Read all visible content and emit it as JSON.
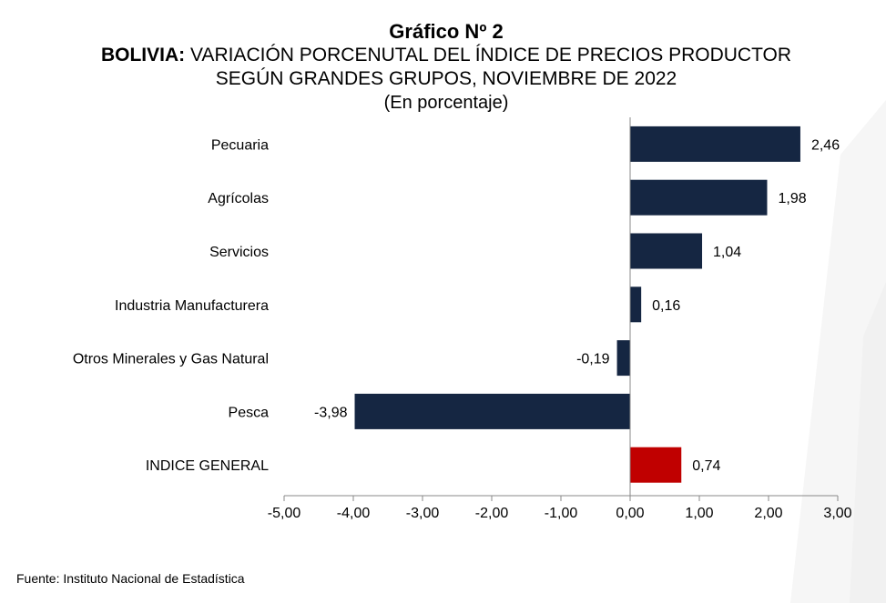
{
  "chart_data": {
    "type": "bar",
    "orientation": "horizontal",
    "title": "Gráfico Nº 2",
    "subtitle_bold": "BOLIVIA:",
    "subtitle_line1": "VARIACIÓN PORCENUTAL DEL ÍNDICE DE PRECIOS PRODUCTOR",
    "subtitle_line2": "SEGÚN GRANDES GRUPOS, NOVIEMBRE DE 2022",
    "unit_note": "(En porcentaje)",
    "categories": [
      "Pecuaria",
      "Agrícolas",
      "Servicios",
      "Industria Manufacturera",
      "Otros Minerales y Gas Natural",
      "Pesca",
      "INDICE GENERAL"
    ],
    "values": [
      2.46,
      1.98,
      1.04,
      0.16,
      -0.19,
      -3.98,
      0.74
    ],
    "value_labels": [
      "2,46",
      "1,98",
      "1,04",
      "0,16",
      "-0,19",
      "-3,98",
      "0,74"
    ],
    "bar_colors": [
      "#152642",
      "#152642",
      "#152642",
      "#152642",
      "#152642",
      "#152642",
      "#c00000"
    ],
    "xlim": [
      -5,
      3
    ],
    "x_ticks": [
      -5,
      -4,
      -3,
      -2,
      -1,
      0,
      1,
      2,
      3
    ],
    "x_tick_labels": [
      "-5,00",
      "-4,00",
      "-3,00",
      "-2,00",
      "-1,00",
      "0,00",
      "1,00",
      "2,00",
      "3,00"
    ],
    "grid": false,
    "legend": "none"
  },
  "source": "Fuente: Instituto Nacional de Estadística"
}
